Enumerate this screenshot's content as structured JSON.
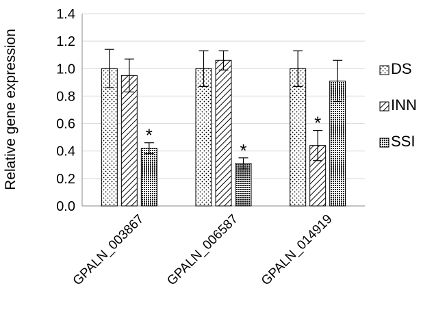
{
  "chart_data": {
    "type": "bar",
    "categories": [
      "GPALN_003867",
      "GPALN_006587",
      "GPALN_014919"
    ],
    "series": [
      {
        "name": "DS",
        "pattern": "dots",
        "values": [
          1.0,
          1.0,
          1.0
        ],
        "errors": [
          0.14,
          0.13,
          0.13
        ]
      },
      {
        "name": "INN",
        "pattern": "diagonal",
        "values": [
          0.95,
          1.06,
          0.44
        ],
        "errors": [
          0.12,
          0.07,
          0.11
        ]
      },
      {
        "name": "SSI",
        "pattern": "dense",
        "values": [
          0.42,
          0.31,
          0.91
        ],
        "errors": [
          0.04,
          0.04,
          0.15
        ]
      }
    ],
    "significance": [
      {
        "category_index": 0,
        "series_index": 2,
        "label": "*"
      },
      {
        "category_index": 1,
        "series_index": 2,
        "label": "*"
      },
      {
        "category_index": 2,
        "series_index": 1,
        "label": "*"
      }
    ],
    "ylabel": "Relative gene expression",
    "xlabel": "",
    "ylim": [
      0,
      1.4
    ],
    "yticks": [
      "0.0",
      "0.2",
      "0.4",
      "0.6",
      "0.8",
      "1.0",
      "1.2",
      "1.4"
    ],
    "grid": true,
    "legend_position": "right",
    "colors": {
      "bar_edge": "#000000",
      "grid": "#d9d9d9",
      "axis": "#888888"
    }
  }
}
